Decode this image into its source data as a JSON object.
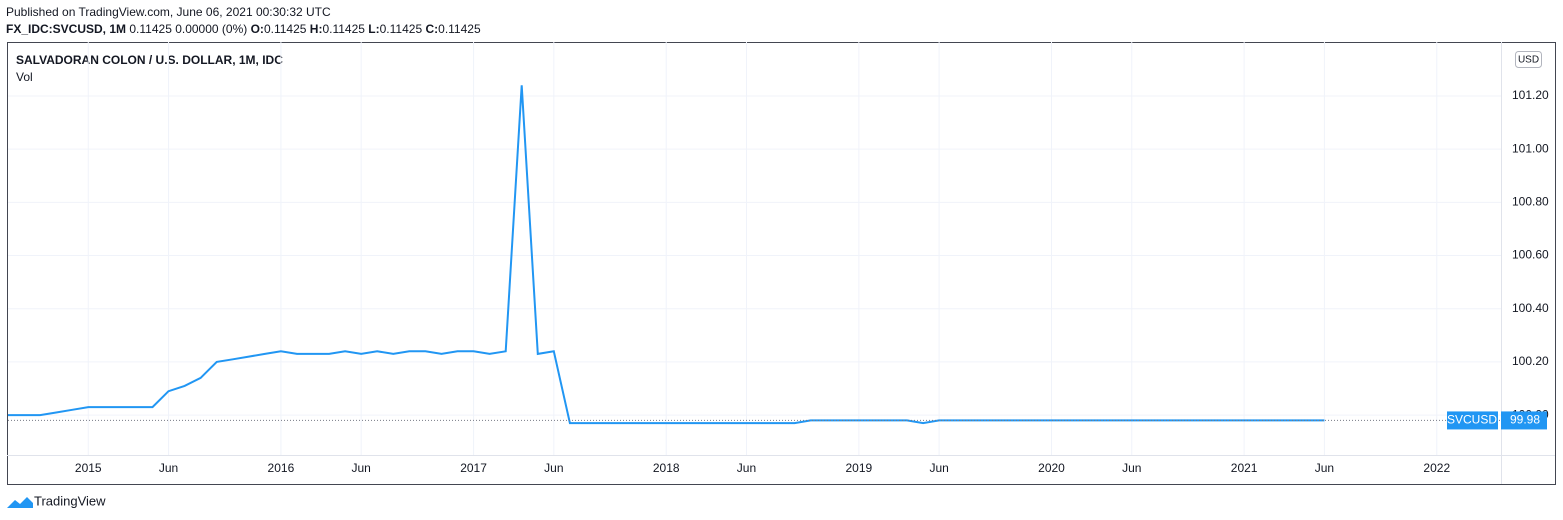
{
  "header": {
    "published": "Published on TradingView.com, June 06, 2021 00:30:32 UTC",
    "symbol": "FX_IDC:SVCUSD, 1M",
    "change": "0.11425 0.00000 (0%)",
    "ohlc": [
      {
        "label": "O:",
        "value": "0.11425"
      },
      {
        "label": "H:",
        "value": "0.11425"
      },
      {
        "label": "L:",
        "value": "0.11425"
      },
      {
        "label": "C:",
        "value": "0.11425"
      }
    ]
  },
  "chart_data": {
    "type": "line",
    "title": "SALVADORAN COLON / U.S. DOLLAR, 1M, IDC",
    "indicator": "Vol",
    "currency": "USD",
    "x": [
      "2014-08",
      "2014-09",
      "2014-10",
      "2014-11",
      "2014-12",
      "2015-01",
      "2015-02",
      "2015-03",
      "2015-04",
      "2015-05",
      "2015-06",
      "2015-07",
      "2015-08",
      "2015-09",
      "2015-10",
      "2015-11",
      "2015-12",
      "2016-01",
      "2016-02",
      "2016-03",
      "2016-04",
      "2016-05",
      "2016-06",
      "2016-07",
      "2016-08",
      "2016-09",
      "2016-10",
      "2016-11",
      "2016-12",
      "2017-01",
      "2017-02",
      "2017-03",
      "2017-04",
      "2017-05",
      "2017-06",
      "2017-07",
      "2017-08",
      "2017-09",
      "2017-10",
      "2017-11",
      "2017-12",
      "2018-01",
      "2018-02",
      "2018-03",
      "2018-04",
      "2018-05",
      "2018-06",
      "2018-07",
      "2018-08",
      "2018-09",
      "2018-10",
      "2018-11",
      "2018-12",
      "2019-01",
      "2019-02",
      "2019-03",
      "2019-04",
      "2019-05",
      "2019-06",
      "2019-07",
      "2019-08",
      "2019-09",
      "2019-10",
      "2019-11",
      "2019-12",
      "2020-01",
      "2020-02",
      "2020-03",
      "2020-04",
      "2020-05",
      "2020-06",
      "2020-07",
      "2020-08",
      "2020-09",
      "2020-10",
      "2020-11",
      "2020-12",
      "2021-01",
      "2021-02",
      "2021-03",
      "2021-04",
      "2021-05",
      "2021-06"
    ],
    "series": [
      {
        "name": "SVCUSD",
        "color": "#2196f3",
        "values": [
          100.0,
          100.0,
          100.0,
          100.01,
          100.02,
          100.03,
          100.03,
          100.03,
          100.03,
          100.03,
          100.09,
          100.11,
          100.14,
          100.2,
          100.21,
          100.22,
          100.23,
          100.24,
          100.23,
          100.23,
          100.23,
          100.24,
          100.23,
          100.24,
          100.23,
          100.24,
          100.24,
          100.23,
          100.24,
          100.24,
          100.23,
          100.24,
          101.24,
          100.23,
          100.24,
          99.97,
          99.97,
          99.97,
          99.97,
          99.97,
          99.97,
          99.97,
          99.97,
          99.97,
          99.97,
          99.97,
          99.97,
          99.97,
          99.97,
          99.97,
          99.98,
          99.98,
          99.98,
          99.98,
          99.98,
          99.98,
          99.98,
          99.97,
          99.98,
          99.98,
          99.98,
          99.98,
          99.98,
          99.98,
          99.98,
          99.98,
          99.98,
          99.98,
          99.98,
          99.98,
          99.98,
          99.98,
          99.98,
          99.98,
          99.98,
          99.98,
          99.98,
          99.98,
          99.98,
          99.98,
          99.98,
          99.98,
          99.98
        ]
      }
    ],
    "xlim": [
      "2014-08",
      "2022-05"
    ],
    "xticks": [
      {
        "value": "2015-01",
        "label": "2015"
      },
      {
        "value": "2015-06",
        "label": "Jun"
      },
      {
        "value": "2016-01",
        "label": "2016"
      },
      {
        "value": "2016-06",
        "label": "Jun"
      },
      {
        "value": "2017-01",
        "label": "2017"
      },
      {
        "value": "2017-06",
        "label": "Jun"
      },
      {
        "value": "2018-01",
        "label": "2018"
      },
      {
        "value": "2018-06",
        "label": "Jun"
      },
      {
        "value": "2019-01",
        "label": "2019"
      },
      {
        "value": "2019-06",
        "label": "Jun"
      },
      {
        "value": "2020-01",
        "label": "2020"
      },
      {
        "value": "2020-06",
        "label": "Jun"
      },
      {
        "value": "2021-01",
        "label": "2021"
      },
      {
        "value": "2021-06",
        "label": "Jun"
      },
      {
        "value": "2022-01",
        "label": "2022"
      }
    ],
    "ylim": [
      99.85,
      101.403
    ],
    "yticks": [
      {
        "value": 100.0,
        "label": "100.00"
      },
      {
        "value": 100.2,
        "label": "100.20"
      },
      {
        "value": 100.4,
        "label": "100.40"
      },
      {
        "value": 100.6,
        "label": "100.60"
      },
      {
        "value": 100.8,
        "label": "100.80"
      },
      {
        "value": 101.0,
        "label": "101.00"
      },
      {
        "value": 101.2,
        "label": "101.20"
      }
    ],
    "grid": true
  },
  "footer": {
    "brand": "TradingView"
  }
}
